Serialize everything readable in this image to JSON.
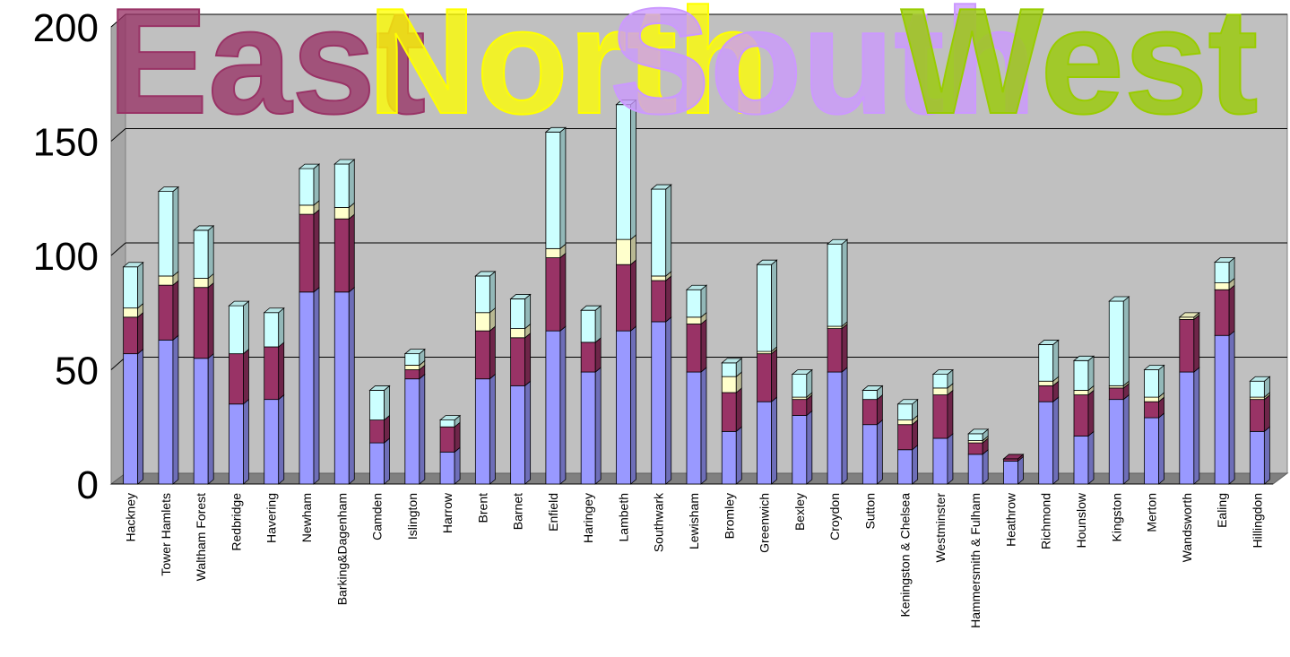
{
  "chart_data": {
    "type": "bar",
    "stacked": true,
    "three_d": true,
    "title": "",
    "xlabel": "",
    "ylabel": "",
    "ylim": [
      0,
      200
    ],
    "yticks": [
      0,
      50,
      100,
      150,
      200
    ],
    "grid": true,
    "legend": "none",
    "categories": [
      "Hackney",
      "Tower Hamlets",
      "Waltham Forest",
      "Redbridge",
      "Havering",
      "Newham",
      "Barking&Dagenham",
      "Camden",
      "Islington",
      "Harrow",
      "Brent",
      "Barnet",
      "Enfield",
      "Haringey",
      "Lambeth",
      "Southwark",
      "Lewisham",
      "Bromley",
      "Greenwich",
      "Bexley",
      "Croydon",
      "Sutton",
      "Keningston & Chelsea",
      "Westminster",
      "Hammersmith & Fulham",
      "Heathrow",
      "Richmond",
      "Hounslow",
      "Kingston",
      "Merton",
      "Wandsworth",
      "Ealing",
      "Hillingdon"
    ],
    "series": [
      {
        "color": "#9999ff",
        "values": [
          57,
          63,
          55,
          35,
          37,
          84,
          84,
          18,
          46,
          14,
          46,
          43,
          67,
          49,
          67,
          71,
          49,
          23,
          36,
          30,
          49,
          26,
          15,
          20,
          13,
          10,
          36,
          21,
          37,
          29,
          49,
          65,
          23
        ]
      },
      {
        "color": "#993366",
        "values": [
          16,
          24,
          31,
          22,
          23,
          34,
          32,
          10,
          4,
          11,
          21,
          21,
          32,
          13,
          29,
          18,
          21,
          17,
          21,
          7,
          19,
          11,
          11,
          19,
          5,
          1,
          7,
          18,
          5,
          7,
          23,
          20,
          14
        ]
      },
      {
        "color": "#ffffcc",
        "values": [
          4,
          4,
          4,
          0,
          0,
          4,
          5,
          0,
          2,
          0,
          8,
          4,
          4,
          0,
          11,
          2,
          3,
          7,
          1,
          1,
          1,
          0,
          2,
          3,
          1,
          0,
          2,
          2,
          1,
          2,
          1,
          3,
          1
        ]
      },
      {
        "color": "#ccffff",
        "values": [
          18,
          37,
          21,
          21,
          15,
          16,
          19,
          13,
          5,
          3,
          16,
          13,
          51,
          14,
          59,
          38,
          12,
          6,
          38,
          10,
          36,
          4,
          7,
          6,
          3,
          0,
          16,
          13,
          37,
          12,
          0,
          9,
          7
        ]
      }
    ]
  },
  "region_labels": [
    {
      "text": "East",
      "color": "#993366"
    },
    {
      "text": "North",
      "color": "#ffff00"
    },
    {
      "text": "South",
      "color": "#cc99ff"
    },
    {
      "text": "West",
      "color": "#99cc00"
    }
  ]
}
